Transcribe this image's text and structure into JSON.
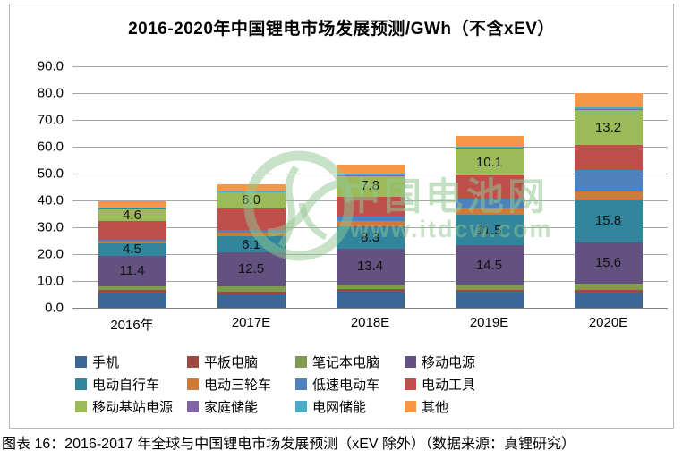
{
  "title": "2016-2020年中国锂电市场发展预测/GWh（不含xEV）",
  "caption": "图表 16：2016-2017 年全球与中国锂电市场发展预测（xEV 除外）（数据来源：真锂研究）",
  "watermark": {
    "site_name": "中国电池网",
    "site_url": "www.itdcw.com",
    "logo_icon": "leaf-swirl-logo",
    "color": "#92C690"
  },
  "chart_data": {
    "type": "bar",
    "stacked": true,
    "title": "2016-2020年中国锂电市场发展预测/GWh（不含xEV）",
    "categories": [
      "2016年",
      "2017E",
      "2018E",
      "2019E",
      "2020E"
    ],
    "series": [
      {
        "name": "手机",
        "color": "#3A6795",
        "values": [
          5.4,
          5.0,
          6.0,
          6.0,
          5.8
        ],
        "labeled": false
      },
      {
        "name": "平板电脑",
        "color": "#9C4A41",
        "values": [
          1.2,
          1.1,
          1.1,
          0.7,
          0.9
        ],
        "labeled": false
      },
      {
        "name": "笔记本电脑",
        "color": "#7E9B50",
        "values": [
          1.5,
          2.0,
          1.6,
          2.0,
          2.2
        ],
        "labeled": false
      },
      {
        "name": "移动电源",
        "color": "#63527F",
        "values": [
          11.4,
          12.5,
          13.4,
          14.5,
          15.6
        ],
        "labeled": true
      },
      {
        "name": "电动自行车",
        "color": "#31859C",
        "values": [
          4.5,
          6.1,
          8.3,
          11.5,
          15.8
        ],
        "labeled": true
      },
      {
        "name": "电动三轮车",
        "color": "#CE7B39",
        "values": [
          0.8,
          1.2,
          1.8,
          2.2,
          3.1
        ],
        "labeled": false
      },
      {
        "name": "低速电动车",
        "color": "#4F81BD",
        "values": [
          0.6,
          1.2,
          1.8,
          3.8,
          7.8
        ],
        "labeled": false
      },
      {
        "name": "电动工具",
        "color": "#BF4F4C",
        "values": [
          6.9,
          8.0,
          7.5,
          8.5,
          9.4
        ],
        "labeled": false
      },
      {
        "name": "移动基站电源",
        "color": "#9BBB59",
        "values": [
          4.6,
          6.0,
          7.8,
          10.1,
          13.2
        ],
        "labeled": true
      },
      {
        "name": "家庭储能",
        "color": "#8064A2",
        "values": [
          0.1,
          0.1,
          0.2,
          0.3,
          0.2
        ],
        "labeled": false
      },
      {
        "name": "电网储能",
        "color": "#4BACC6",
        "values": [
          0.2,
          0.3,
          0.6,
          0.5,
          0.6
        ],
        "labeled": false
      },
      {
        "name": "其他",
        "color": "#F79646",
        "values": [
          2.6,
          2.4,
          3.4,
          4.0,
          5.5
        ],
        "labeled": false
      }
    ],
    "totals_approx": [
      39.8,
      45.9,
      53.5,
      64.1,
      80.2
    ],
    "ylim": [
      0,
      90
    ],
    "ytick_step": 10,
    "ytick_labels": [
      "0.0",
      "10.0",
      "20.0",
      "30.0",
      "40.0",
      "50.0",
      "60.0",
      "70.0",
      "80.0",
      "90.0"
    ],
    "grid": true,
    "gridline_color": "#a6a6a6",
    "legend_position": "bottom",
    "legend_rows": 3,
    "legend_columns": 4
  }
}
